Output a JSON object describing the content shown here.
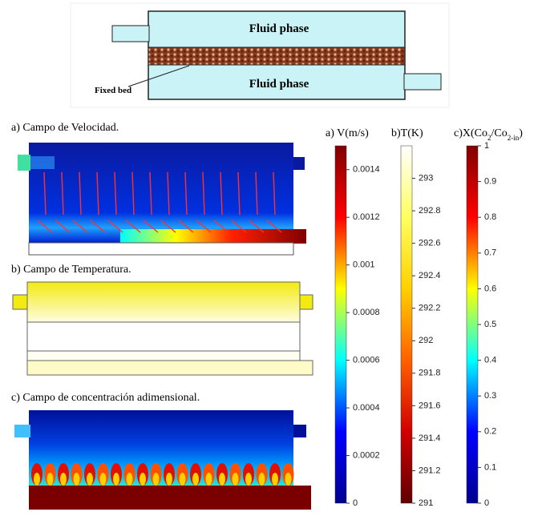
{
  "schematic": {
    "top_label": "Fluid phase",
    "bottom_label": "Fluid phase",
    "bed_label": "Fixed bed"
  },
  "panels": [
    "a) Campo de Velocidad.",
    "b) Campo de Temperatura.",
    "c) Campo de concentración adimensional."
  ],
  "colorbars": [
    {
      "title_parts": [
        "a) V(m/s)"
      ],
      "lim": [
        0,
        0.0015
      ],
      "ticks": [
        0,
        0.0002,
        0.0004,
        0.0006,
        0.0008,
        0.001,
        0.0012,
        0.0014
      ],
      "colors": [
        "#00008f",
        "#0000ff",
        "#00ffff",
        "#ffff00",
        "#ff0000",
        "#800000"
      ]
    },
    {
      "title_parts": [
        "b)T(K)"
      ],
      "lim": [
        291,
        293.2
      ],
      "ticks": [
        291,
        291.2,
        291.4,
        291.6,
        291.8,
        292,
        292.2,
        292.4,
        292.6,
        292.8,
        293
      ],
      "colors": [
        "#600000",
        "#d00000",
        "#ff6000",
        "#ffd000",
        "#ffff60",
        "#ffffff"
      ]
    },
    {
      "title_parts": [
        "c)X(Co",
        "2",
        "/Co",
        "2-in",
        ")"
      ],
      "lim": [
        0,
        1
      ],
      "ticks": [
        0,
        0.1,
        0.2,
        0.3,
        0.4,
        0.5,
        0.6,
        0.7,
        0.8,
        0.9,
        1
      ],
      "colors": [
        "#00008f",
        "#0000ff",
        "#00ffff",
        "#ffff00",
        "#ff0000",
        "#800000"
      ]
    }
  ]
}
